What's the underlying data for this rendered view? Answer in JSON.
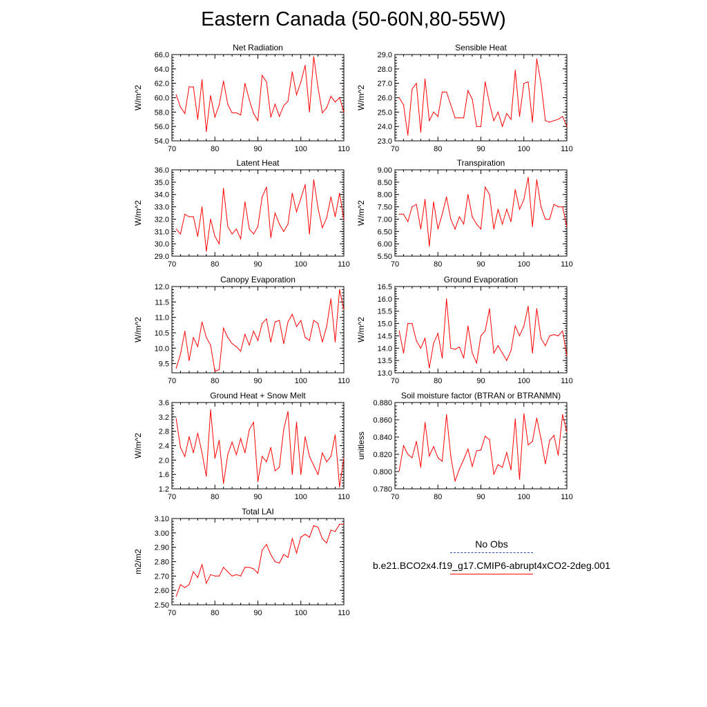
{
  "title": "Eastern Canada (50-60N,80-55W)",
  "legend": {
    "obs_label": "No Obs",
    "obs_color": "#3344aa",
    "model_label": "b.e21.BCO2x4.f19_g17.CMIP6-abrupt4xCO2-2deg.001",
    "model_color": "#ff0000"
  },
  "chart_data": [
    {
      "type": "line",
      "title": "Net Radiation",
      "ylabel": "W/m^2",
      "xlim": [
        70,
        110
      ],
      "xticks": [
        70,
        80,
        90,
        100,
        110
      ],
      "ylim": [
        54.0,
        66.0
      ],
      "yticks": [
        "54.0",
        "56.0",
        "58.0",
        "60.0",
        "62.0",
        "64.0",
        "66.0"
      ],
      "x": [
        71,
        72,
        73,
        74,
        75,
        76,
        77,
        78,
        79,
        80,
        81,
        82,
        83,
        84,
        85,
        86,
        87,
        88,
        89,
        90,
        91,
        92,
        93,
        94,
        95,
        96,
        97,
        98,
        99,
        100,
        101,
        102,
        103,
        104,
        105,
        106,
        107,
        108,
        109,
        110
      ],
      "values": [
        60.4,
        58.7,
        57.8,
        61.5,
        61.5,
        57.0,
        62.5,
        55.3,
        60.3,
        57.3,
        59.0,
        62.3,
        59.1,
        57.9,
        57.9,
        57.6,
        62.0,
        59.7,
        57.8,
        56.8,
        63.1,
        62.2,
        57.3,
        59.1,
        57.4,
        58.9,
        59.5,
        63.6,
        60.4,
        62.2,
        64.5,
        58.0,
        65.7,
        61.4,
        57.9,
        58.6,
        60.2,
        59.4,
        60.0,
        58.0
      ]
    },
    {
      "type": "line",
      "title": "Sensible Heat",
      "ylabel": "W/m^2",
      "xlim": [
        70,
        110
      ],
      "xticks": [
        70,
        80,
        90,
        100,
        110
      ],
      "ylim": [
        23.0,
        29.0
      ],
      "yticks": [
        "23.0",
        "24.0",
        "25.0",
        "26.0",
        "27.0",
        "28.0",
        "29.0"
      ],
      "x": [
        71,
        72,
        73,
        74,
        75,
        76,
        77,
        78,
        79,
        80,
        81,
        82,
        83,
        84,
        85,
        86,
        87,
        88,
        89,
        90,
        91,
        92,
        93,
        94,
        95,
        96,
        97,
        98,
        99,
        100,
        101,
        102,
        103,
        104,
        105,
        106,
        107,
        108,
        109,
        110
      ],
      "values": [
        26.0,
        25.5,
        23.4,
        26.6,
        27.0,
        23.6,
        27.3,
        24.4,
        25.0,
        24.7,
        26.4,
        26.4,
        25.5,
        24.6,
        24.6,
        24.6,
        26.5,
        25.9,
        24.0,
        24.0,
        27.1,
        25.6,
        24.4,
        25.0,
        24.0,
        24.9,
        24.5,
        27.9,
        24.7,
        27.0,
        27.1,
        24.3,
        28.7,
        27.0,
        24.4,
        24.3,
        24.4,
        24.5,
        24.7,
        24.0
      ]
    },
    {
      "type": "line",
      "title": "Latent Heat",
      "ylabel": "W/m^2",
      "xlim": [
        70,
        110
      ],
      "xticks": [
        70,
        80,
        90,
        100,
        110
      ],
      "ylim": [
        29.0,
        36.0
      ],
      "yticks": [
        "29.0",
        "30.0",
        "31.0",
        "32.0",
        "33.0",
        "34.0",
        "35.0",
        "36.0"
      ],
      "x": [
        71,
        72,
        73,
        74,
        75,
        76,
        77,
        78,
        79,
        80,
        81,
        82,
        83,
        84,
        85,
        86,
        87,
        88,
        89,
        90,
        91,
        92,
        93,
        94,
        95,
        96,
        97,
        98,
        99,
        100,
        101,
        102,
        103,
        104,
        105,
        106,
        107,
        108,
        109,
        110
      ],
      "values": [
        31.2,
        30.8,
        32.4,
        32.2,
        32.2,
        30.6,
        33.0,
        29.4,
        32.0,
        30.6,
        30.0,
        34.5,
        31.4,
        30.8,
        31.2,
        30.4,
        33.4,
        31.2,
        30.8,
        31.4,
        33.8,
        34.6,
        30.5,
        32.5,
        31.6,
        31.0,
        31.6,
        34.1,
        32.6,
        33.7,
        34.8,
        30.8,
        35.2,
        32.9,
        31.3,
        32.1,
        33.8,
        32.2,
        34.1,
        32.0
      ]
    },
    {
      "type": "line",
      "title": "Transpiration",
      "ylabel": "W/m^2",
      "xlim": [
        70,
        110
      ],
      "xticks": [
        70,
        80,
        90,
        100,
        110
      ],
      "ylim": [
        5.5,
        9.0
      ],
      "yticks": [
        "5.50",
        "6.00",
        "6.50",
        "7.00",
        "7.50",
        "8.00",
        "8.50",
        "9.00"
      ],
      "x": [
        71,
        72,
        73,
        74,
        75,
        76,
        77,
        78,
        79,
        80,
        81,
        82,
        83,
        84,
        85,
        86,
        87,
        88,
        89,
        90,
        91,
        92,
        93,
        94,
        95,
        96,
        97,
        98,
        99,
        100,
        101,
        102,
        103,
        104,
        105,
        106,
        107,
        108,
        109,
        110
      ],
      "values": [
        7.2,
        7.2,
        6.9,
        7.5,
        7.6,
        6.6,
        7.8,
        5.9,
        7.7,
        6.6,
        7.2,
        7.9,
        7.0,
        6.6,
        7.1,
        6.8,
        8.0,
        7.1,
        6.8,
        6.6,
        8.3,
        8.0,
        6.6,
        7.4,
        6.8,
        7.4,
        6.9,
        8.2,
        7.4,
        7.8,
        8.7,
        6.7,
        8.6,
        7.5,
        7.0,
        7.0,
        7.6,
        7.5,
        7.5,
        6.7
      ]
    },
    {
      "type": "line",
      "title": "Canopy Evaporation",
      "ylabel": "W/m^2",
      "xlim": [
        70,
        110
      ],
      "xticks": [
        70,
        80,
        90,
        100,
        110
      ],
      "ylim": [
        9.2,
        12.0
      ],
      "yticks": [
        "9.5",
        "10.0",
        "10.5",
        "11.0",
        "11.5",
        "12.0"
      ],
      "x": [
        71,
        72,
        73,
        74,
        75,
        76,
        77,
        78,
        79,
        80,
        81,
        82,
        83,
        84,
        85,
        86,
        87,
        88,
        89,
        90,
        91,
        92,
        93,
        94,
        95,
        96,
        97,
        98,
        99,
        100,
        101,
        102,
        103,
        104,
        105,
        106,
        107,
        108,
        109,
        110
      ],
      "values": [
        9.35,
        9.8,
        10.55,
        9.6,
        10.35,
        10.05,
        10.85,
        10.35,
        10.1,
        9.25,
        9.3,
        10.65,
        10.35,
        10.15,
        10.05,
        9.9,
        10.45,
        10.1,
        10.55,
        10.25,
        10.8,
        10.95,
        10.2,
        10.85,
        10.9,
        10.15,
        10.85,
        11.1,
        10.7,
        10.9,
        10.35,
        10.25,
        10.9,
        10.8,
        10.2,
        10.7,
        11.6,
        10.2,
        11.9,
        11.25
      ]
    },
    {
      "type": "line",
      "title": "Ground Evaporation",
      "ylabel": "W/m^2",
      "xlim": [
        70,
        110
      ],
      "xticks": [
        70,
        80,
        90,
        100,
        110
      ],
      "ylim": [
        13.0,
        16.5
      ],
      "yticks": [
        "13.0",
        "13.5",
        "14.0",
        "14.5",
        "15.0",
        "15.5",
        "16.0",
        "16.5"
      ],
      "x": [
        71,
        72,
        73,
        74,
        75,
        76,
        77,
        78,
        79,
        80,
        81,
        82,
        83,
        84,
        85,
        86,
        87,
        88,
        89,
        90,
        91,
        92,
        93,
        94,
        95,
        96,
        97,
        98,
        99,
        100,
        101,
        102,
        103,
        104,
        105,
        106,
        107,
        108,
        109,
        110
      ],
      "values": [
        14.7,
        13.8,
        15.0,
        15.0,
        14.3,
        14.0,
        14.4,
        13.2,
        14.2,
        14.6,
        13.6,
        16.0,
        14.0,
        13.95,
        14.05,
        13.6,
        14.9,
        13.8,
        13.4,
        14.5,
        14.7,
        15.6,
        13.8,
        14.1,
        13.8,
        13.5,
        13.9,
        14.9,
        14.5,
        14.9,
        15.7,
        13.8,
        15.6,
        14.4,
        14.1,
        14.5,
        14.55,
        14.5,
        14.7,
        13.7
      ]
    },
    {
      "type": "line",
      "title": "Ground Heat + Snow Melt",
      "ylabel": "W/m^2",
      "xlim": [
        70,
        110
      ],
      "xticks": [
        70,
        80,
        90,
        100,
        110
      ],
      "ylim": [
        1.2,
        3.6
      ],
      "yticks": [
        "1.2",
        "1.6",
        "2.0",
        "2.4",
        "2.8",
        "3.2",
        "3.6"
      ],
      "x": [
        71,
        72,
        73,
        74,
        75,
        76,
        77,
        78,
        79,
        80,
        81,
        82,
        83,
        84,
        85,
        86,
        87,
        88,
        89,
        90,
        91,
        92,
        93,
        94,
        95,
        96,
        97,
        98,
        99,
        100,
        101,
        102,
        103,
        104,
        105,
        106,
        107,
        108,
        109,
        110
      ],
      "values": [
        3.15,
        2.35,
        2.1,
        2.65,
        2.2,
        2.75,
        2.2,
        1.55,
        3.4,
        2.05,
        2.55,
        1.35,
        2.15,
        2.5,
        2.15,
        2.6,
        2.2,
        2.85,
        3.05,
        1.4,
        2.1,
        1.95,
        2.35,
        1.7,
        1.8,
        2.85,
        3.35,
        1.6,
        3.05,
        1.6,
        2.65,
        2.1,
        1.85,
        1.6,
        2.2,
        1.95,
        2.1,
        2.7,
        1.25,
        2.05
      ]
    },
    {
      "type": "line",
      "title": "Soil moisture factor (BTRAN or BTRANMN)",
      "ylabel": "unitless",
      "xlim": [
        70,
        110
      ],
      "xticks": [
        70,
        80,
        90,
        100,
        110
      ],
      "ylim": [
        0.78,
        0.88
      ],
      "yticks": [
        "0.780",
        "0.800",
        "0.820",
        "0.840",
        "0.860",
        "0.880"
      ],
      "x": [
        71,
        72,
        73,
        74,
        75,
        76,
        77,
        78,
        79,
        80,
        81,
        82,
        83,
        84,
        85,
        86,
        87,
        88,
        89,
        90,
        91,
        92,
        93,
        94,
        95,
        96,
        97,
        98,
        99,
        100,
        101,
        102,
        103,
        104,
        105,
        106,
        107,
        108,
        109,
        110
      ],
      "values": [
        0.801,
        0.83,
        0.82,
        0.816,
        0.835,
        0.805,
        0.857,
        0.818,
        0.829,
        0.816,
        0.812,
        0.866,
        0.818,
        0.789,
        0.803,
        0.814,
        0.826,
        0.806,
        0.824,
        0.825,
        0.841,
        0.837,
        0.797,
        0.808,
        0.805,
        0.822,
        0.802,
        0.861,
        0.791,
        0.867,
        0.831,
        0.835,
        0.862,
        0.838,
        0.809,
        0.836,
        0.842,
        0.819,
        0.866,
        0.846
      ]
    },
    {
      "type": "line",
      "title": "Total LAI",
      "ylabel": "m2/m2",
      "xlim": [
        70,
        110
      ],
      "xticks": [
        70,
        80,
        90,
        100,
        110
      ],
      "ylim": [
        2.5,
        3.1
      ],
      "yticks": [
        "2.50",
        "2.60",
        "2.70",
        "2.80",
        "2.90",
        "3.00",
        "3.10"
      ],
      "x": [
        71,
        72,
        73,
        74,
        75,
        76,
        77,
        78,
        79,
        80,
        81,
        82,
        83,
        84,
        85,
        86,
        87,
        88,
        89,
        90,
        91,
        92,
        93,
        94,
        95,
        96,
        97,
        98,
        99,
        100,
        101,
        102,
        103,
        104,
        105,
        106,
        107,
        108,
        109,
        110
      ],
      "values": [
        2.56,
        2.64,
        2.62,
        2.64,
        2.73,
        2.69,
        2.78,
        2.65,
        2.71,
        2.7,
        2.7,
        2.76,
        2.73,
        2.7,
        2.71,
        2.7,
        2.76,
        2.76,
        2.75,
        2.72,
        2.88,
        2.92,
        2.85,
        2.8,
        2.79,
        2.85,
        2.83,
        2.96,
        2.86,
        2.97,
        2.99,
        2.97,
        3.05,
        3.04,
        2.96,
        2.93,
        3.02,
        3.01,
        3.06,
        3.06
      ]
    }
  ]
}
